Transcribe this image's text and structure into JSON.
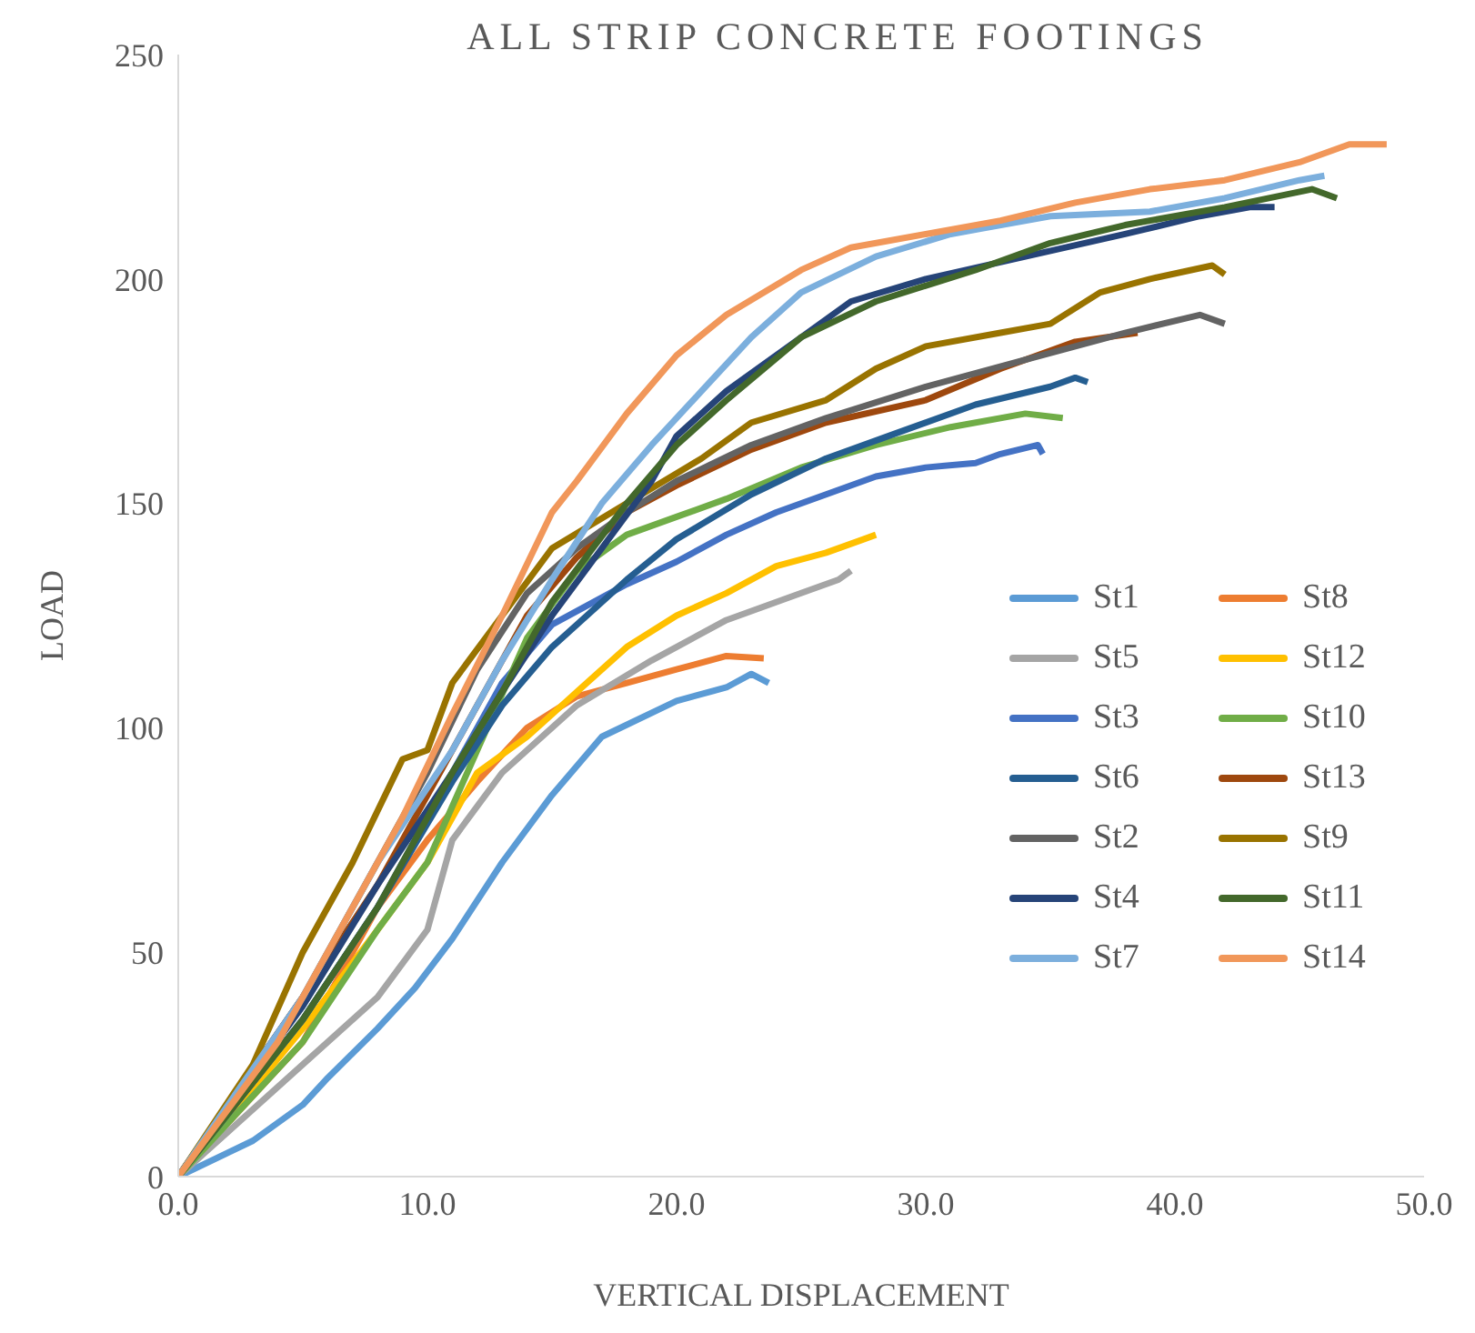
{
  "chart_data": {
    "type": "line",
    "title": "ALL STRIP CONCRETE FOOTINGS",
    "xlabel": "VERTICAL DISPLACEMENT",
    "ylabel": "LOAD",
    "xlim": [
      0,
      50
    ],
    "xticks": [
      {
        "value": 0,
        "label": "0.0"
      },
      {
        "value": 10,
        "label": "10.0"
      },
      {
        "value": 20,
        "label": "20.0"
      },
      {
        "value": 30,
        "label": "30.0"
      },
      {
        "value": 40,
        "label": "40.0"
      },
      {
        "value": 50,
        "label": "50.0"
      }
    ],
    "ylim": [
      0,
      250
    ],
    "yticks": [
      0,
      50,
      100,
      150,
      200,
      250
    ],
    "grid": false,
    "legend": "bottom right",
    "marker": "none",
    "line_style": "solid",
    "series": [
      {
        "name": "St1",
        "color": "#5b9bd5",
        "x": [
          0,
          3,
          5,
          6,
          8,
          9.5,
          11,
          13,
          15,
          17,
          20,
          22,
          23,
          23.7
        ],
        "values": [
          0,
          8,
          16,
          22,
          33,
          42,
          53,
          70,
          85,
          98,
          106,
          109,
          112,
          110
        ]
      },
      {
        "name": "St8",
        "color": "#ed7d31",
        "x": [
          0,
          5,
          8,
          10,
          12,
          14,
          16,
          18,
          20,
          22,
          23.5
        ],
        "values": [
          0,
          30,
          60,
          75,
          88,
          100,
          107,
          110,
          113,
          116,
          115.5
        ]
      },
      {
        "name": "St5",
        "color": "#a5a5a5",
        "x": [
          0,
          5,
          8,
          10,
          11,
          13,
          16,
          19,
          22,
          25,
          26.5,
          27
        ],
        "values": [
          0,
          25,
          40,
          55,
          75,
          90,
          105,
          115,
          124,
          130,
          133,
          135
        ]
      },
      {
        "name": "St12",
        "color": "#ffc000",
        "x": [
          1,
          5,
          8,
          10,
          12,
          14,
          16,
          18,
          20,
          22,
          24,
          26,
          27.5,
          28
        ],
        "values": [
          6,
          33,
          55,
          70,
          90,
          98,
          108,
          118,
          125,
          130,
          136,
          139,
          142,
          143
        ]
      },
      {
        "name": "St3",
        "color": "#4472c4",
        "x": [
          0,
          5,
          8,
          11,
          13,
          15,
          18,
          20,
          22,
          24,
          26,
          28,
          30,
          32,
          33,
          34.5,
          34.7
        ],
        "values": [
          0,
          35,
          60,
          90,
          110,
          123,
          132,
          137,
          143,
          148,
          152,
          156,
          158,
          159,
          161,
          163,
          161
        ]
      },
      {
        "name": "St10",
        "color": "#70ad47",
        "x": [
          0,
          5,
          8,
          10,
          12,
          14,
          16,
          18,
          20,
          22,
          25,
          28,
          31,
          34,
          35.5
        ],
        "values": [
          0,
          30,
          55,
          70,
          95,
          120,
          135,
          143,
          147,
          151,
          158,
          163,
          167,
          170,
          169
        ]
      },
      {
        "name": "St6",
        "color": "#255e91",
        "x": [
          0,
          5,
          8,
          11,
          13,
          15,
          18,
          20,
          23,
          26,
          29,
          32,
          35,
          36,
          36.5
        ],
        "values": [
          0,
          35,
          60,
          88,
          105,
          118,
          133,
          142,
          152,
          160,
          166,
          172,
          176,
          178,
          177
        ]
      },
      {
        "name": "St13",
        "color": "#9e480e",
        "x": [
          0,
          5,
          8,
          10,
          12,
          14,
          16,
          18,
          20,
          23,
          26,
          30,
          33,
          36,
          38.5
        ],
        "values": [
          0,
          40,
          65,
          85,
          105,
          125,
          138,
          148,
          154,
          162,
          168,
          173,
          180,
          186,
          188
        ]
      },
      {
        "name": "St2",
        "color": "#636363",
        "x": [
          0,
          5,
          8,
          10,
          12,
          14,
          16,
          18,
          20,
          23,
          26,
          30,
          34,
          38,
          41,
          42
        ],
        "values": [
          0,
          40,
          70,
          90,
          113,
          130,
          140,
          148,
          155,
          163,
          169,
          176,
          182,
          188,
          192,
          190
        ]
      },
      {
        "name": "St9",
        "color": "#997300",
        "x": [
          0,
          3,
          5,
          7,
          9,
          10,
          11,
          13,
          15,
          18,
          21,
          23,
          26,
          28,
          30,
          33,
          35,
          37,
          39,
          41.5,
          42
        ],
        "values": [
          0,
          25,
          50,
          70,
          93,
          95,
          110,
          125,
          140,
          150,
          160,
          168,
          173,
          180,
          185,
          188,
          190,
          197,
          200,
          203,
          201
        ]
      },
      {
        "name": "St4",
        "color": "#264478",
        "x": [
          0,
          5,
          8,
          11,
          13,
          15,
          17,
          19,
          20,
          22,
          25,
          27,
          30,
          34,
          38,
          41,
          43,
          44
        ],
        "values": [
          0,
          38,
          65,
          90,
          108,
          125,
          140,
          155,
          165,
          175,
          187,
          195,
          200,
          205,
          210,
          214,
          216,
          216
        ]
      },
      {
        "name": "St11",
        "color": "#43682b",
        "x": [
          0,
          5,
          8,
          11,
          13,
          15,
          18,
          20,
          22,
          25,
          28,
          32,
          35,
          38,
          42,
          45.5,
          46.5
        ],
        "values": [
          0,
          35,
          60,
          90,
          108,
          128,
          150,
          163,
          173,
          187,
          195,
          202,
          208,
          212,
          216,
          220,
          218
        ]
      },
      {
        "name": "St7",
        "color": "#7cafdd",
        "x": [
          0,
          5,
          8,
          11,
          13,
          15,
          17,
          19,
          21,
          23,
          25,
          28,
          31,
          35,
          39,
          42,
          45,
          46
        ],
        "values": [
          0,
          40,
          70,
          95,
          115,
          133,
          150,
          163,
          175,
          187,
          197,
          205,
          210,
          214,
          215,
          218,
          222,
          223
        ]
      },
      {
        "name": "St14",
        "color": "#f1975a",
        "x": [
          0,
          4,
          7,
          9,
          11,
          13,
          15,
          16,
          18,
          20,
          22,
          25,
          27,
          30,
          33,
          36,
          39,
          42,
          45,
          47,
          48.5
        ],
        "values": [
          0,
          30,
          60,
          80,
          103,
          125,
          148,
          155,
          170,
          183,
          192,
          202,
          207,
          210,
          213,
          217,
          220,
          222,
          226,
          230,
          230
        ]
      }
    ]
  }
}
